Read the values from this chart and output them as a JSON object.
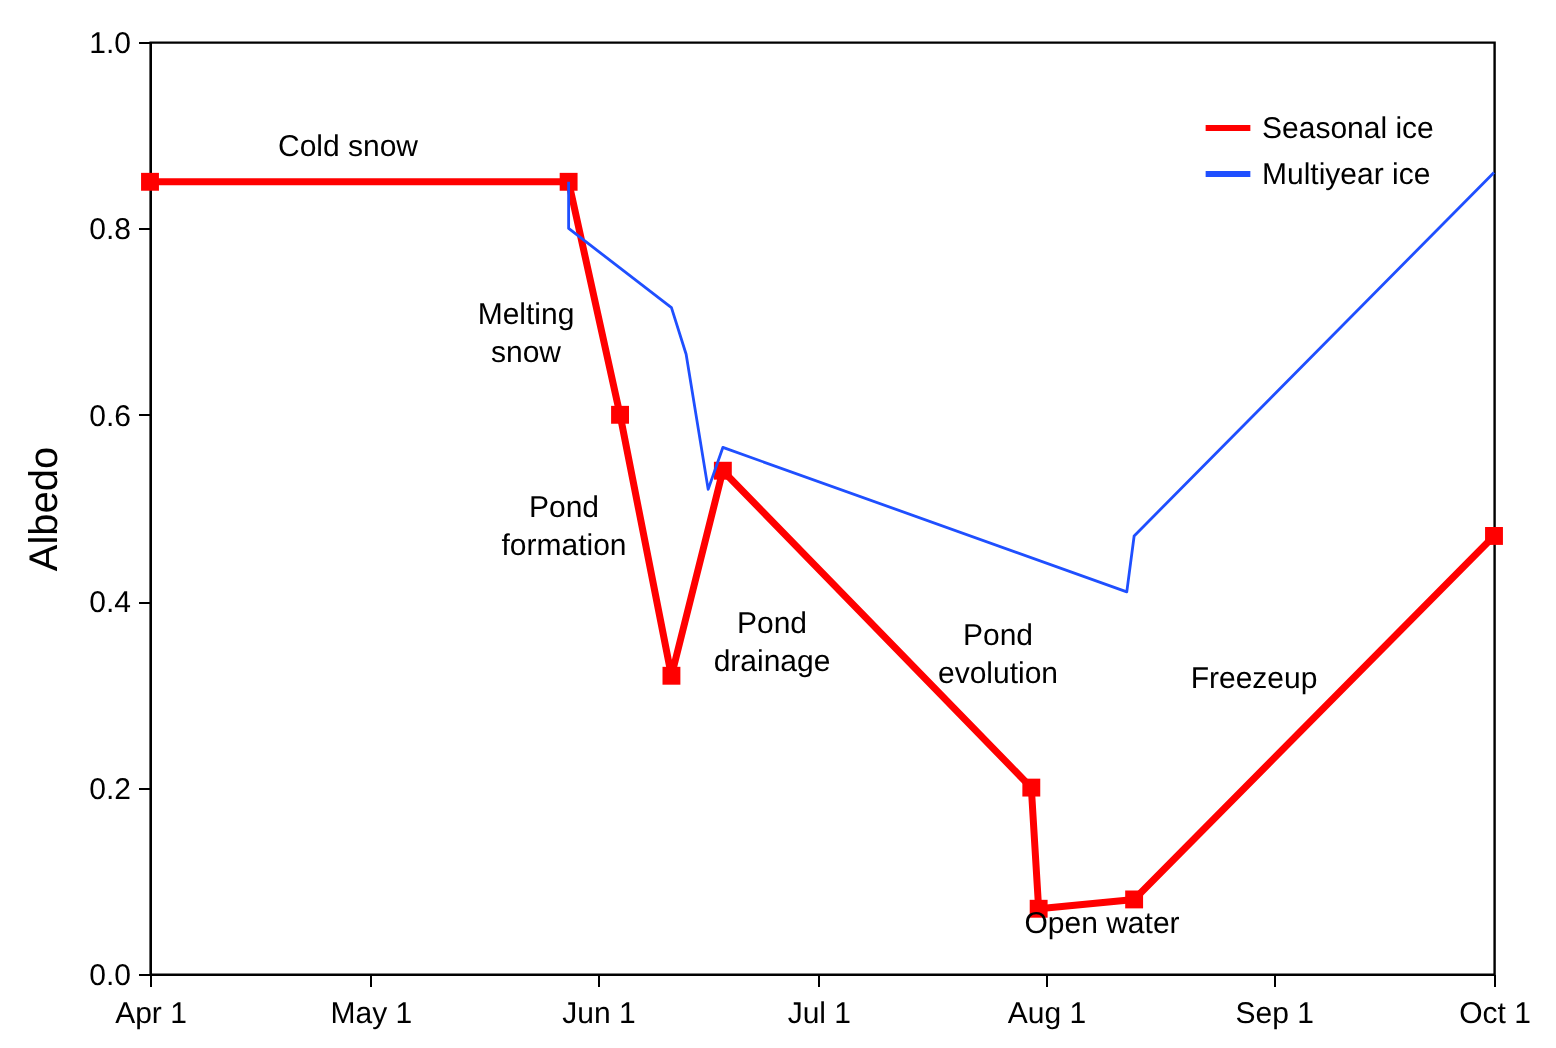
{
  "chart_data": {
    "type": "line",
    "ylabel": "Albedo",
    "xlim": [
      "--04-01",
      "--10-01"
    ],
    "xticks": [
      {
        "value": "--04-01",
        "label": "Apr 1"
      },
      {
        "value": "--05-01",
        "label": "May 1"
      },
      {
        "value": "--06-01",
        "label": "Jun 1"
      },
      {
        "value": "--07-01",
        "label": "Jul 1"
      },
      {
        "value": "--08-01",
        "label": "Aug 1"
      },
      {
        "value": "--09-01",
        "label": "Sep 1"
      },
      {
        "value": "--10-01",
        "label": "Oct 1"
      }
    ],
    "ylim": [
      0,
      1
    ],
    "yticks": [
      {
        "value": 0,
        "label": "0.0"
      },
      {
        "value": 0.2,
        "label": "0.2"
      },
      {
        "value": 0.4,
        "label": "0.4"
      },
      {
        "value": 0.6,
        "label": "0.6"
      },
      {
        "value": 0.8,
        "label": "0.8"
      },
      {
        "value": 1,
        "label": "1.0"
      }
    ],
    "grid": false,
    "legend": "top right",
    "series": [
      {
        "name": "Seasonal ice",
        "color": "#ff0000",
        "marker": "square",
        "x": [
          "--04-01",
          "--05-28",
          "--06-04",
          "--06-11",
          "--06-18",
          "--07-30",
          "--07-31",
          "--08-13",
          "--10-01"
        ],
        "values": [
          0.85,
          0.85,
          0.6,
          0.32,
          0.54,
          0.2,
          0.07,
          0.08,
          0.47
        ]
      },
      {
        "name": "Multiyear ice",
        "color": "#1f4fff",
        "marker": "none",
        "x": [
          "--05-28",
          "--05-28",
          "--06-11",
          "--06-13",
          "--06-16",
          "--06-18",
          "--08-12",
          "--08-13",
          "--10-01"
        ],
        "values": [
          0.85,
          0.8,
          0.715,
          0.665,
          0.52,
          0.565,
          0.41,
          0.47,
          0.86
        ]
      }
    ],
    "annotations": [
      "Cold snow",
      "Melting\nsnow",
      "Pond\nformation",
      "Pond\ndrainage",
      "Pond\nevolution",
      "Freezeup",
      "Open water"
    ]
  }
}
